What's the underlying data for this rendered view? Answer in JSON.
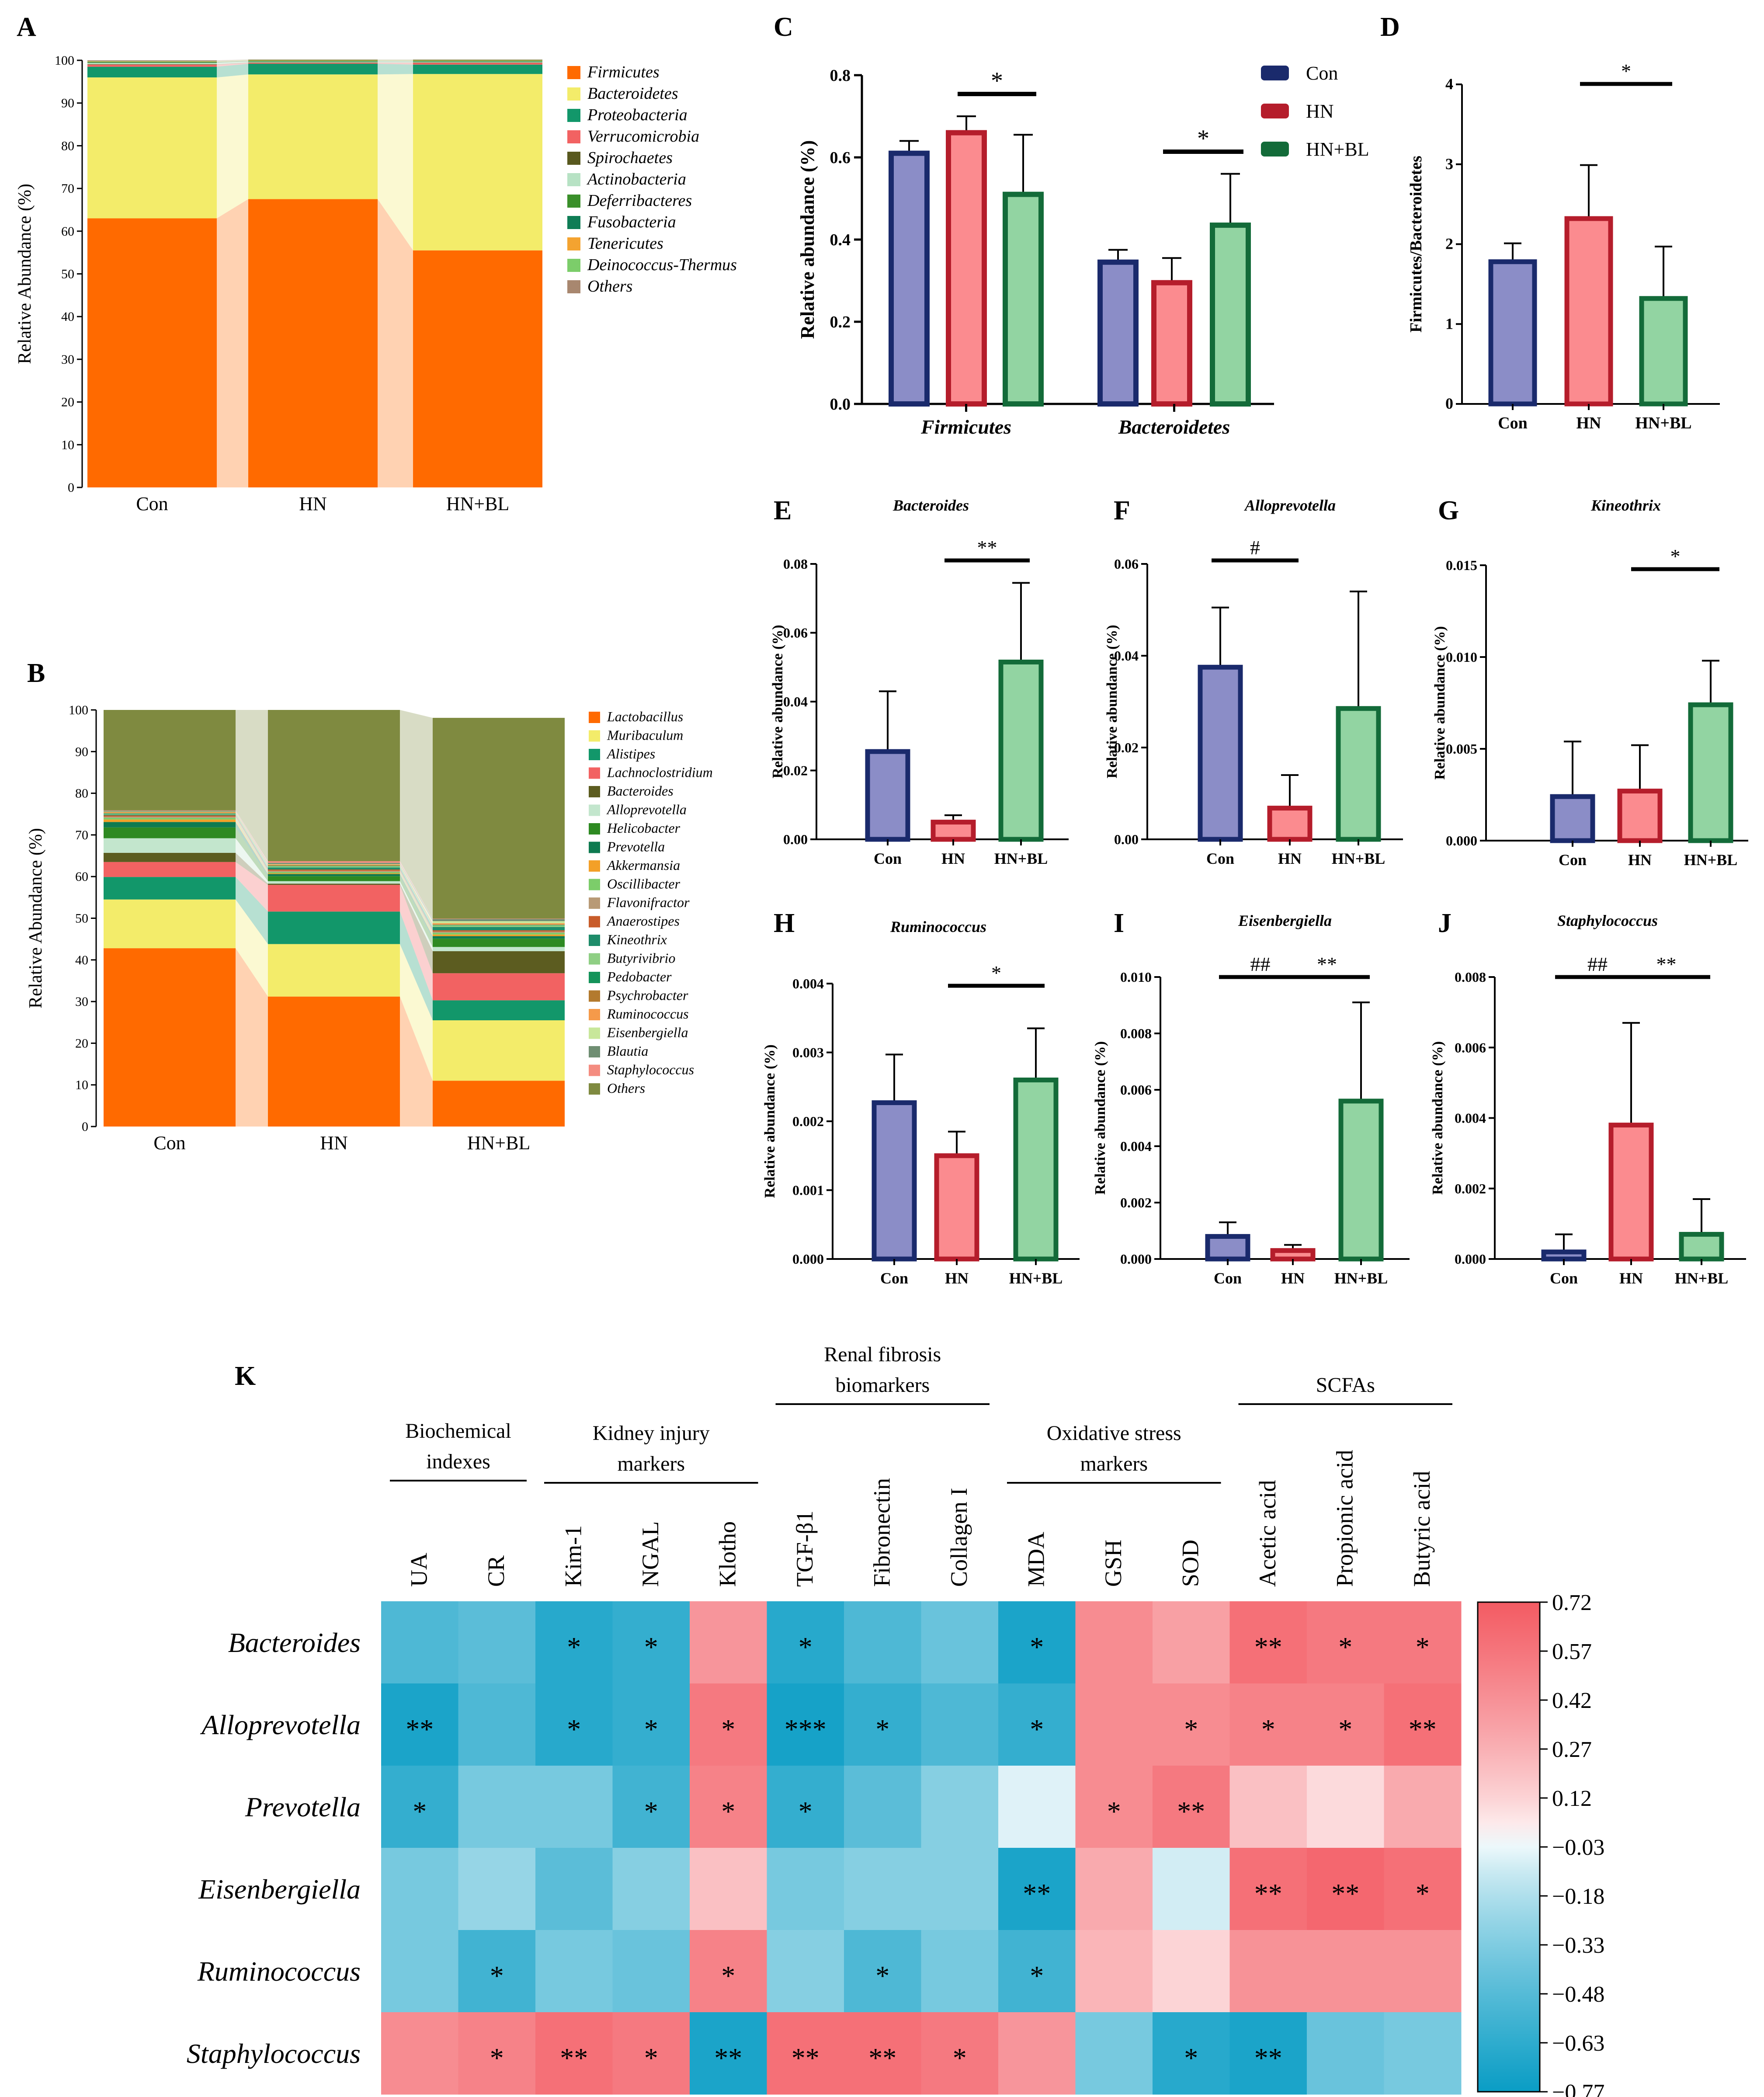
{
  "figure": {
    "panel_letters": [
      "A",
      "B",
      "C",
      "D",
      "E",
      "F",
      "G",
      "H",
      "I",
      "J",
      "K"
    ]
  },
  "colors": {
    "con_fill": "#8b8dc7",
    "con_edge": "#1a2a6c",
    "hn_fill": "#fb8b8f",
    "hn_edge": "#b51d2b",
    "hnbl_fill": "#92d4a2",
    "hnbl_edge": "#136b39",
    "heat_neg": "#0a9dc5",
    "heat_mid": "#ffffff",
    "heat_pos": "#f35b63"
  },
  "chart_data": [
    {
      "id": "A",
      "type": "stacked-bar",
      "ylabel": "Relative Abundance (%)",
      "ylim": [
        0,
        100
      ],
      "yticks": [
        0,
        10,
        20,
        30,
        40,
        50,
        60,
        70,
        80,
        90,
        100
      ],
      "categories": [
        "Con",
        "HN",
        "HN+BL"
      ],
      "series": [
        {
          "name": "Firmicutes",
          "color": "#ff6a00",
          "values": [
            63,
            67.5,
            55.5
          ]
        },
        {
          "name": "Bacteroidetes",
          "color": "#f3ec6a",
          "values": [
            33,
            29.2,
            41.3
          ]
        },
        {
          "name": "Proteobacteria",
          "color": "#12976a",
          "values": [
            2.5,
            2.5,
            2.2
          ]
        },
        {
          "name": "Verrucomicrobia",
          "color": "#f26262",
          "values": [
            0.5,
            0.2,
            0.4
          ]
        },
        {
          "name": "Spirochaetes",
          "color": "#58581e",
          "values": [
            0.1,
            0.1,
            0.1
          ]
        },
        {
          "name": "Actinobacteria",
          "color": "#b7e2c4",
          "values": [
            0.3,
            0.2,
            0.2
          ]
        },
        {
          "name": "Deferribacteres",
          "color": "#3a8f2a",
          "values": [
            0.1,
            0.1,
            0.1
          ]
        },
        {
          "name": "Fusobacteria",
          "color": "#0f7d55",
          "values": [
            0.1,
            0.1,
            0.1
          ]
        },
        {
          "name": "Tenericutes",
          "color": "#f4a330",
          "values": [
            0.1,
            0.1,
            0.1
          ]
        },
        {
          "name": "Deinococcus-Thermus",
          "color": "#7ccd6a",
          "values": [
            0.1,
            0.1,
            0.1
          ]
        },
        {
          "name": "Others",
          "color": "#a8876f",
          "values": [
            0.2,
            0.1,
            0.1
          ]
        }
      ]
    },
    {
      "id": "B",
      "type": "stacked-bar",
      "ylabel": "Relative Abundance (%)",
      "ylim": [
        0,
        100
      ],
      "yticks": [
        0,
        10,
        20,
        30,
        40,
        50,
        60,
        70,
        80,
        90,
        100
      ],
      "categories": [
        "Con",
        "HN",
        "HN+BL"
      ],
      "series": [
        {
          "name": "Lactobacillus",
          "color": "#ff6a00",
          "values": [
            42.8,
            31.2,
            11
          ]
        },
        {
          "name": "Muribaculum",
          "color": "#f3ec6a",
          "values": [
            11.7,
            12.6,
            14.5
          ]
        },
        {
          "name": "Alistipes",
          "color": "#12976a",
          "values": [
            5.4,
            7.8,
            4.8
          ]
        },
        {
          "name": "Lachnoclostridium",
          "color": "#f26262",
          "values": [
            3.6,
            6.4,
            6.5
          ]
        },
        {
          "name": "Bacteroides",
          "color": "#5c5c20",
          "values": [
            2.2,
            0.3,
            5.3
          ]
        },
        {
          "name": "Alloprevotella",
          "color": "#c3e6cd",
          "values": [
            3.5,
            0.6,
            1
          ]
        },
        {
          "name": "Helicobacter",
          "color": "#2e8a22",
          "values": [
            2.6,
            1.2,
            2
          ]
        },
        {
          "name": "Prevotella",
          "color": "#0e7a50",
          "values": [
            1.3,
            0.5,
            0.6
          ]
        },
        {
          "name": "Akkermansia",
          "color": "#f3a028",
          "values": [
            0.6,
            0.2,
            0.4
          ]
        },
        {
          "name": "Oscillibacter",
          "color": "#7ccd6a",
          "values": [
            0.4,
            0.3,
            0.4
          ]
        },
        {
          "name": "Flavonifractor",
          "color": "#b89a76",
          "values": [
            0.3,
            0.3,
            0.3
          ]
        },
        {
          "name": "Anaerostipes",
          "color": "#c85c2a",
          "values": [
            0.3,
            0.3,
            0.3
          ]
        },
        {
          "name": "Kineothrix",
          "color": "#1e8c6a",
          "values": [
            0.2,
            0.5,
            0.8
          ]
        },
        {
          "name": "Butyrivibrio",
          "color": "#8fcf84",
          "values": [
            0.2,
            0.3,
            0.4
          ]
        },
        {
          "name": "Pedobacter",
          "color": "#14935a",
          "values": [
            0.1,
            0.1,
            0.1
          ]
        },
        {
          "name": "Psychrobacter",
          "color": "#b37a2e",
          "values": [
            0.1,
            0.1,
            0.1
          ]
        },
        {
          "name": "Ruminococcus",
          "color": "#f59a4a",
          "values": [
            0.2,
            0.2,
            0.3
          ]
        },
        {
          "name": "Eisenbergiella",
          "color": "#c8e79a",
          "values": [
            0.1,
            0.1,
            0.5
          ]
        },
        {
          "name": "Blautia",
          "color": "#6f8e72",
          "values": [
            0.2,
            0.3,
            0.5
          ]
        },
        {
          "name": "Staphylococcus",
          "color": "#f48c80",
          "values": [
            0.1,
            0.4,
            0.1
          ]
        },
        {
          "name": "Others",
          "color": "#7f8a40",
          "values": [
            24.1,
            36.3,
            48.2
          ]
        }
      ]
    },
    {
      "id": "C",
      "type": "grouped-bar",
      "ylabel": "Relative abundance (%)",
      "ylim": [
        0,
        0.8
      ],
      "yticks": [
        "0.0",
        "0.2",
        "0.4",
        "0.6",
        "0.8"
      ],
      "groups": [
        "Firmicutes",
        "Bacteroidetes"
      ],
      "legend": [
        "Con",
        "HN",
        "HN+BL"
      ],
      "values": [
        [
          0.61,
          0.66,
          0.51
        ],
        [
          0.345,
          0.295,
          0.435
        ]
      ],
      "errors": [
        [
          0.03,
          0.04,
          0.145
        ],
        [
          0.03,
          0.06,
          0.125
        ]
      ],
      "annotations": [
        {
          "group": 0,
          "from": 1,
          "to": 2,
          "label": "*"
        },
        {
          "group": 1,
          "from": 1,
          "to": 2,
          "label": "*"
        }
      ]
    },
    {
      "id": "D",
      "type": "bar",
      "title": "",
      "ylabel": "Firmicutes/Bacteroidetes",
      "ylim": [
        0,
        4
      ],
      "yticks": [
        "0",
        "1",
        "2",
        "3",
        "4"
      ],
      "categories": [
        "Con",
        "HN",
        "HN+BL"
      ],
      "values": [
        1.78,
        2.32,
        1.32
      ],
      "errors": [
        0.23,
        0.67,
        0.65
      ],
      "annotations": [
        {
          "from": 1,
          "to": 2,
          "label": "*"
        }
      ]
    },
    {
      "id": "E",
      "type": "bar",
      "title": "Bacteroides",
      "ylabel": "Relative abundance (%)",
      "ylim": [
        0,
        0.08
      ],
      "yticks": [
        "0.00",
        "0.02",
        "0.04",
        "0.06",
        "0.08"
      ],
      "categories": [
        "Con",
        "HN",
        "HN+BL"
      ],
      "values": [
        0.0255,
        0.005,
        0.0515
      ],
      "errors": [
        0.0175,
        0.002,
        0.023
      ],
      "annotations": [
        {
          "from": 1,
          "to": 2,
          "label": "**"
        }
      ]
    },
    {
      "id": "F",
      "type": "bar",
      "title": "Alloprevotella",
      "ylabel": "Relative abundance (%)",
      "ylim": [
        0,
        0.06
      ],
      "yticks": [
        "0.00",
        "0.02",
        "0.04",
        "0.06"
      ],
      "categories": [
        "Con",
        "HN",
        "HN+BL"
      ],
      "values": [
        0.0375,
        0.0068,
        0.0285
      ],
      "errors": [
        0.013,
        0.0072,
        0.0255
      ],
      "annotations": [
        {
          "from": 0,
          "to": 1,
          "label": "#"
        }
      ]
    },
    {
      "id": "G",
      "type": "bar",
      "title": "Kineothrix",
      "ylabel": "Relative abundance (%)",
      "ylim": [
        0,
        0.015
      ],
      "yticks": [
        "0.000",
        "0.005",
        "0.010",
        "0.015"
      ],
      "categories": [
        "Con",
        "HN",
        "HN+BL"
      ],
      "values": [
        0.0024,
        0.0027,
        0.0074
      ],
      "errors": [
        0.003,
        0.0025,
        0.0024
      ],
      "annotations": [
        {
          "from": 1,
          "to": 2,
          "label": "*"
        }
      ]
    },
    {
      "id": "H",
      "type": "bar",
      "title": "Ruminococcus",
      "ylabel": "Relative abundance (%)",
      "ylim": [
        0,
        0.004
      ],
      "yticks": [
        "0.000",
        "0.001",
        "0.002",
        "0.003",
        "0.004"
      ],
      "categories": [
        "Con",
        "HN",
        "HN+BL"
      ],
      "values": [
        0.00227,
        0.0015,
        0.0026
      ],
      "errors": [
        0.0007,
        0.00035,
        0.00075
      ],
      "annotations": [
        {
          "from": 1,
          "to": 2,
          "label": "*"
        }
      ]
    },
    {
      "id": "I",
      "type": "bar",
      "title": "Eisenbergiella",
      "ylabel": "Relative abundance (%)",
      "ylim": [
        0,
        0.01
      ],
      "yticks": [
        "0.000",
        "0.002",
        "0.004",
        "0.006",
        "0.008",
        "0.010"
      ],
      "categories": [
        "Con",
        "HN",
        "HN+BL"
      ],
      "values": [
        0.0008,
        0.0003,
        0.0056
      ],
      "errors": [
        0.0005,
        0.0002,
        0.0035
      ],
      "annotations": [
        {
          "from": 0,
          "to": 1,
          "label": "##"
        },
        {
          "from": 1,
          "to": 2,
          "label": "**"
        }
      ]
    },
    {
      "id": "J",
      "type": "bar",
      "title": "Staphylococcus",
      "ylabel": "Relative abundance (%)",
      "ylim": [
        0,
        0.008
      ],
      "yticks": [
        "0.000",
        "0.002",
        "0.004",
        "0.006",
        "0.008"
      ],
      "categories": [
        "Con",
        "HN",
        "HN+BL"
      ],
      "values": [
        0.0002,
        0.0038,
        0.0007
      ],
      "errors": [
        0.0005,
        0.0029,
        0.001
      ],
      "annotations": [
        {
          "from": 0,
          "to": 1,
          "label": "##"
        },
        {
          "from": 1,
          "to": 2,
          "label": "**"
        }
      ]
    },
    {
      "id": "K",
      "type": "heatmap",
      "groups": [
        {
          "label": [
            "Biochemical",
            "indexes"
          ],
          "span": [
            0,
            1
          ]
        },
        {
          "label": [
            "Kidney injury",
            "markers"
          ],
          "span": [
            2,
            4
          ]
        },
        {
          "label": [
            "Renal fibrosis",
            "biomarkers"
          ],
          "span": [
            5,
            7
          ]
        },
        {
          "label": [
            "Oxidative stress",
            "markers"
          ],
          "span": [
            8,
            10
          ]
        },
        {
          "label": [
            "SCFAs"
          ],
          "span": [
            11,
            13
          ]
        }
      ],
      "columns": [
        "UA",
        "CR",
        "Kim-1",
        "NGAL",
        "Klotho",
        "TGF-β1",
        "Fibronectin",
        "Collagen I",
        "MDA",
        "GSH",
        "SOD",
        "Acetic acid",
        "Propionic acid",
        "Butyric acid"
      ],
      "rows": [
        "Bacteroides",
        "Alloprevotella",
        "Prevotella",
        "Eisenbergiella",
        "Ruminococcus",
        "Staphylococcus"
      ],
      "values": [
        [
          -0.5,
          -0.45,
          -0.65,
          -0.6,
          0.4,
          -0.65,
          -0.5,
          -0.4,
          -0.7,
          0.45,
          0.35,
          0.6,
          0.55,
          0.55
        ],
        [
          -0.7,
          -0.5,
          -0.65,
          -0.6,
          0.55,
          -0.72,
          -0.6,
          -0.5,
          -0.6,
          0.45,
          0.45,
          0.5,
          0.5,
          0.6
        ],
        [
          -0.6,
          -0.35,
          -0.35,
          -0.55,
          0.5,
          -0.6,
          -0.45,
          -0.3,
          -0.05,
          0.45,
          0.55,
          0.2,
          0.1,
          0.3
        ],
        [
          -0.35,
          -0.25,
          -0.45,
          -0.3,
          0.2,
          -0.35,
          -0.3,
          -0.3,
          -0.7,
          0.3,
          -0.08,
          0.6,
          0.65,
          0.6
        ],
        [
          -0.35,
          -0.55,
          -0.35,
          -0.4,
          0.5,
          -0.3,
          -0.5,
          -0.35,
          -0.55,
          0.25,
          0.12,
          0.42,
          0.42,
          0.42
        ],
        [
          0.45,
          0.5,
          0.6,
          0.55,
          -0.7,
          0.6,
          0.6,
          0.55,
          0.4,
          -0.35,
          -0.65,
          -0.7,
          -0.4,
          -0.35
        ]
      ],
      "stars": [
        [
          "",
          "",
          "*",
          "*",
          "",
          "*",
          "",
          "",
          "*",
          "",
          "",
          "**",
          "*",
          "*"
        ],
        [
          "**",
          "",
          "*",
          "*",
          "*",
          "***",
          "*",
          "",
          "*",
          "",
          "*",
          "*",
          "*",
          "**"
        ],
        [
          "*",
          "",
          "",
          "*",
          "*",
          "*",
          "",
          "",
          "",
          "*",
          "**",
          "",
          "",
          ""
        ],
        [
          "",
          "",
          "",
          "",
          "",
          "",
          "",
          "",
          "**",
          "",
          "",
          "**",
          "**",
          "*"
        ],
        [
          "",
          "*",
          "",
          "",
          "*",
          "",
          "*",
          "",
          "*",
          "",
          "",
          "",
          "",
          ""
        ],
        [
          "",
          "*",
          "**",
          "*",
          "**",
          "**",
          "**",
          "*",
          "",
          "",
          "*",
          "**",
          "",
          ""
        ]
      ],
      "colorbar": {
        "range": [
          -0.77,
          0.72
        ],
        "ticks": [
          "0.72",
          "0.57",
          "0.42",
          "0.27",
          "0.12",
          "−0.03",
          "−0.18",
          "−0.33",
          "−0.48",
          "−0.63",
          "−0.77"
        ]
      }
    }
  ]
}
